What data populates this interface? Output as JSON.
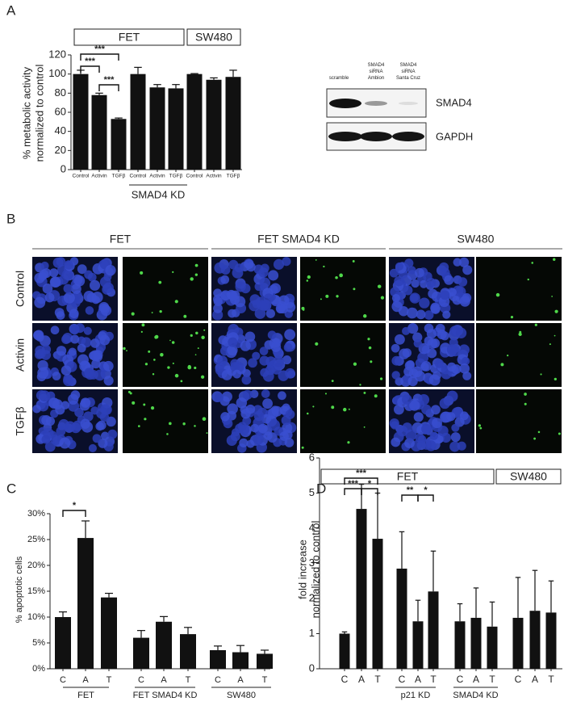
{
  "panel_labels": [
    "A",
    "B",
    "C",
    "D"
  ],
  "chart_data": [
    {
      "type": "bar",
      "ylabel": [
        "% metabolic activity",
        "normalized to control"
      ],
      "categories": [
        "Control",
        "Activin",
        "TGFβ",
        "Control",
        "Activin",
        "TGFβ",
        "Control",
        "Activin",
        "TGFβ"
      ],
      "values": [
        100,
        78,
        53,
        100,
        86,
        85,
        100,
        94,
        97
      ],
      "errors": [
        4,
        2,
        1,
        7,
        3,
        4,
        0.5,
        2,
        7
      ],
      "color": "#111111",
      "ylim": [
        0,
        120
      ],
      "yticks": [
        0,
        20,
        40,
        60,
        80,
        100,
        120
      ],
      "group_labels": [
        "FET",
        "SW480",
        "SMAD4 KD"
      ],
      "annotations": [
        "***",
        "***",
        "***"
      ]
    },
    {
      "type": "bar",
      "ylabel": [
        "% apoptotic cells"
      ],
      "categories": [
        "C",
        "A",
        "T",
        "C",
        "A",
        "T",
        "C",
        "A",
        "T"
      ],
      "values": [
        10,
        25.3,
        13.8,
        6,
        9.1,
        6.7,
        3.6,
        3.2,
        2.9
      ],
      "errors": [
        1,
        3.3,
        0.8,
        1.4,
        1,
        1.3,
        0.8,
        1.3,
        0.7
      ],
      "color": "#111111",
      "ylim": [
        0,
        30
      ],
      "yticks": [
        {
          "value": 0,
          "label": "0%"
        },
        {
          "value": 5,
          "label": "5%"
        },
        {
          "value": 10,
          "label": "10%"
        },
        {
          "value": 15,
          "label": "15%"
        },
        {
          "value": 20,
          "label": "20%"
        },
        {
          "value": 25,
          "label": "25%"
        },
        {
          "value": 30,
          "label": "30%"
        }
      ],
      "group_labels": [
        "FET",
        "FET SMAD4 KD",
        "SW480"
      ],
      "annotations": [
        "*"
      ]
    },
    {
      "type": "bar",
      "ylabel": [
        "fold increase",
        "normalized to control"
      ],
      "categories": [
        "C",
        "A",
        "T",
        "C",
        "A",
        "T",
        "C",
        "A",
        "T",
        "C",
        "A",
        "T"
      ],
      "values": [
        1,
        4.55,
        3.7,
        2.85,
        1.35,
        2.2,
        1.35,
        1.45,
        1.2,
        1.45,
        1.65,
        1.6
      ],
      "errors": [
        0.05,
        0.7,
        1.3,
        1.05,
        0.6,
        1.15,
        0.5,
        0.85,
        0.7,
        1.15,
        1.15,
        0.9
      ],
      "color": "#111111",
      "ylim": [
        0,
        6
      ],
      "yticks": [
        0,
        1,
        2,
        3,
        4,
        5,
        6
      ],
      "group_labels": [
        "FET",
        "SW480",
        "p21 KD",
        "SMAD4 KD"
      ],
      "annotations": [
        "***",
        "***",
        "*",
        "**",
        "*"
      ]
    }
  ],
  "blot": {
    "lanes": [
      "scramble",
      "SMAD4 siRNA Ambion",
      "SMAD4 siRNA Santa Cruz"
    ],
    "proteins": [
      "SMAD4",
      "GAPDH"
    ]
  },
  "micrographs": {
    "columns": [
      "FET",
      "FET SMAD4 KD",
      "SW480"
    ],
    "rows": [
      "Control",
      "Activin",
      "TGFβ"
    ]
  }
}
